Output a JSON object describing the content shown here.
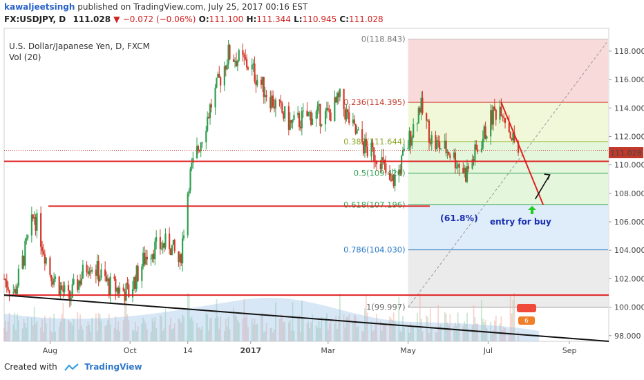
{
  "header": {
    "user": "kawaljeetsingh",
    "published": "published on TradingView.com, July 25, 2017 00:16 EST",
    "symbol": "FX:USDJPY, D",
    "last": "111.028",
    "change": "−0.072 (−0.06%)",
    "o_label": "O:",
    "o": "111.100",
    "h_label": "H:",
    "h": "111.344",
    "l_label": "L:",
    "l": "110.945",
    "c_label": "C:",
    "c": "111.028"
  },
  "chart_title": "U.S. Dollar/Japanese Yen, D, FXCM",
  "vol_label": "Vol (20)",
  "last_price_label": "111.028",
  "annotations": {
    "pct": "(61.8%)",
    "entry": "entry for buy"
  },
  "footer": {
    "created": "Created with",
    "brand": "TradingView"
  },
  "colors": {
    "up": "#2e9e4f",
    "down": "#d23a2a",
    "support_line": "#e02020",
    "trend_line": "#111111",
    "fib_0": "#f7d3d3",
    "fib_236": "#eef7d2",
    "fib_382": "#dff4d6",
    "fib_618": "#d8eaf8",
    "fib_786": "#e8e8e8"
  },
  "chart_data": {
    "type": "candlestick",
    "ylim": [
      97.6,
      119.6
    ],
    "y_ticks": [
      "98.000",
      "100.000",
      "102.000",
      "104.000",
      "106.000",
      "108.000",
      "110.000",
      "112.000",
      "114.000",
      "116.000",
      "118.000"
    ],
    "x_ticks": [
      "Aug",
      "Oct",
      "14",
      "2017",
      "Mar",
      "May",
      "Jul",
      "Sep"
    ],
    "fib_levels": [
      {
        "label": "0(118.843)",
        "value": 118.843
      },
      {
        "label": "0.236(114.395)",
        "value": 114.395
      },
      {
        "label": "0.382(111.644)",
        "value": 111.644
      },
      {
        "label": "0.5(109.420)",
        "value": 109.42
      },
      {
        "label": "0.618(107.196)",
        "value": 107.196
      },
      {
        "label": "0.786(104.030)",
        "value": 104.03
      },
      {
        "label": "1(99.997)",
        "value": 99.997
      }
    ],
    "support_lines": [
      110.25,
      107.1,
      100.85
    ],
    "last_price": 111.028,
    "price_path": [
      [
        "2016-06-27",
        102.0
      ],
      [
        "2016-07-05",
        101.0
      ],
      [
        "2016-07-20",
        106.5
      ],
      [
        "2016-08-01",
        102.5
      ],
      [
        "2016-08-15",
        100.5
      ],
      [
        "2016-08-31",
        103.2
      ],
      [
        "2016-09-15",
        101.5
      ],
      [
        "2016-09-30",
        101.0
      ],
      [
        "2016-10-15",
        104.0
      ],
      [
        "2016-10-31",
        104.5
      ],
      [
        "2016-11-08",
        103.0
      ],
      [
        "2016-11-15",
        109.0
      ],
      [
        "2016-12-01",
        114.0
      ],
      [
        "2016-12-15",
        117.8
      ],
      [
        "2016-12-31",
        117.0
      ],
      [
        "2017-01-10",
        115.5
      ],
      [
        "2017-01-20",
        114.2
      ],
      [
        "2017-02-01",
        112.8
      ],
      [
        "2017-02-15",
        113.5
      ],
      [
        "2017-03-01",
        113.5
      ],
      [
        "2017-03-10",
        114.6
      ],
      [
        "2017-03-20",
        112.5
      ],
      [
        "2017-03-31",
        111.0
      ],
      [
        "2017-04-10",
        110.5
      ],
      [
        "2017-04-17",
        108.5
      ],
      [
        "2017-04-24",
        109.6
      ],
      [
        "2017-05-01",
        111.5
      ],
      [
        "2017-05-10",
        114.2
      ],
      [
        "2017-05-20",
        111.5
      ],
      [
        "2017-06-01",
        111.0
      ],
      [
        "2017-06-14",
        109.4
      ],
      [
        "2017-06-25",
        111.5
      ],
      [
        "2017-07-05",
        113.6
      ],
      [
        "2017-07-11",
        114.2
      ],
      [
        "2017-07-19",
        112.0
      ],
      [
        "2017-07-24",
        111.028
      ]
    ]
  }
}
